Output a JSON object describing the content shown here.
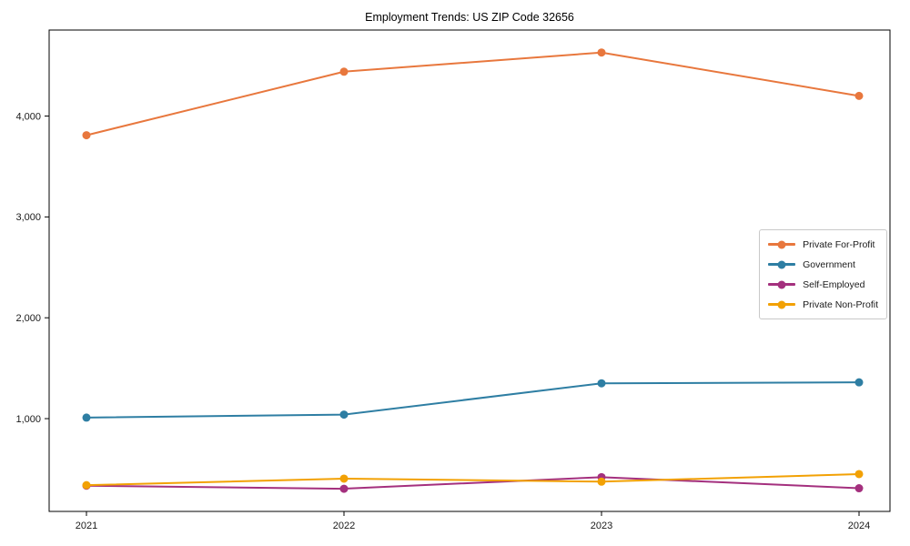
{
  "page": {
    "background": "#ffffff"
  },
  "chart_data": {
    "type": "line",
    "title": "Employment Trends: US ZIP Code 32656",
    "xlabel": "",
    "ylabel": "",
    "grid": false,
    "legend_position": "center-right",
    "axis_color": "#000000",
    "text_color": "#1a1a1a",
    "categories": [
      "2021",
      "2022",
      "2023",
      "2024"
    ],
    "series": [
      {
        "name": "Private For-Profit",
        "color": "#E8773D",
        "values": [
          3810,
          4440,
          4630,
          4200
        ]
      },
      {
        "name": "Government",
        "color": "#2E7EA3",
        "values": [
          1010,
          1040,
          1350,
          1360
        ]
      },
      {
        "name": "Self-Employed",
        "color": "#A4307E",
        "values": [
          335,
          305,
          420,
          310
        ]
      },
      {
        "name": "Private Non-Profit",
        "color": "#F2A104",
        "values": [
          340,
          405,
          375,
          450
        ]
      }
    ],
    "y_ticks": [
      {
        "value": 1000,
        "label": "1,000"
      },
      {
        "value": 2000,
        "label": "2,000"
      },
      {
        "value": 3000,
        "label": "3,000"
      },
      {
        "value": 4000,
        "label": "4,000"
      }
    ],
    "ylim": [
      80,
      4853
    ],
    "marker": "circle"
  }
}
